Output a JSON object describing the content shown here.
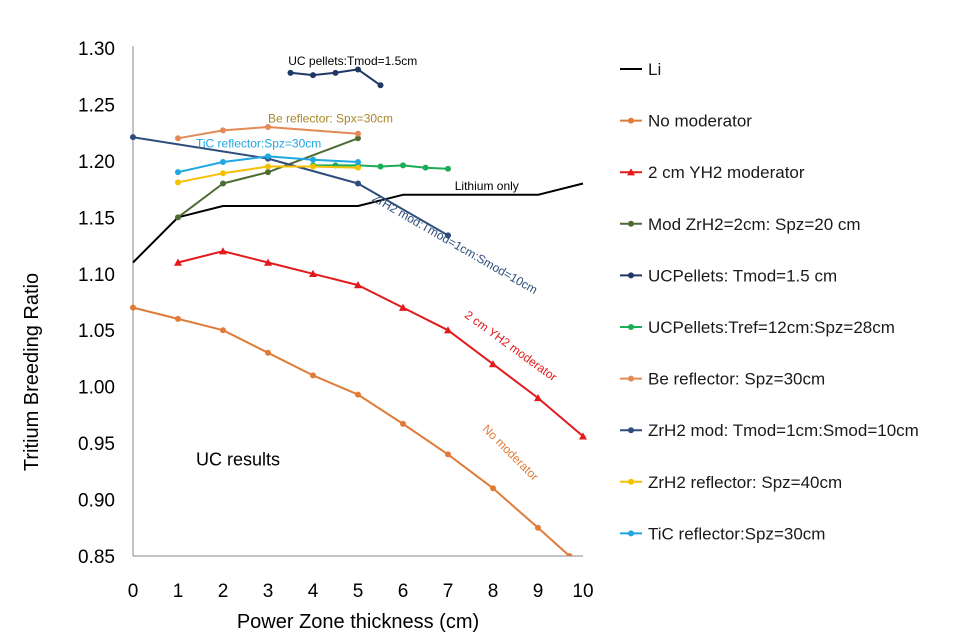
{
  "chart_data": {
    "type": "line",
    "xlabel": "Power Zone thickness (cm)",
    "ylabel": "Tritium Breeding Ratio",
    "xlim": [
      0,
      10
    ],
    "ylim": [
      0.85,
      1.3
    ],
    "x_ticks": [
      "0",
      "1",
      "2",
      "3",
      "4",
      "5",
      "6",
      "7",
      "8",
      "9",
      "10"
    ],
    "y_ticks": [
      "0.85",
      "0.90",
      "0.95",
      "1.00",
      "1.05",
      "1.10",
      "1.15",
      "1.20",
      "1.25",
      "1.30"
    ],
    "grid": false,
    "legend_position": "right",
    "series": [
      {
        "name": "Li",
        "color": "#000000",
        "marker": "none",
        "x": [
          0,
          1,
          2,
          3,
          4,
          5,
          6,
          7,
          8,
          9,
          10
        ],
        "y": [
          1.11,
          1.15,
          1.16,
          1.16,
          1.16,
          1.16,
          1.17,
          1.17,
          1.17,
          1.17,
          1.18
        ]
      },
      {
        "name": "No moderator",
        "color": "#e07b39",
        "marker": "circle",
        "x": [
          0,
          1,
          2,
          3,
          4,
          5,
          6,
          7,
          8,
          9,
          9.7
        ],
        "y": [
          1.07,
          1.06,
          1.05,
          1.03,
          1.01,
          0.993,
          0.967,
          0.94,
          0.91,
          0.875,
          0.85
        ]
      },
      {
        "name": "2 cm YH2 moderator",
        "color": "#e31a1c",
        "marker": "triangle",
        "x": [
          1,
          2,
          3,
          4,
          5,
          6,
          7,
          8,
          9,
          10
        ],
        "y": [
          1.11,
          1.12,
          1.11,
          1.1,
          1.09,
          1.07,
          1.05,
          1.02,
          0.99,
          0.956
        ]
      },
      {
        "name": "Mod ZrH2=2cm: Spz=20 cm",
        "color": "#4e6b34",
        "marker": "circle",
        "x": [
          1,
          2,
          3,
          5
        ],
        "y": [
          1.15,
          1.18,
          1.19,
          1.22
        ]
      },
      {
        "name": "UCPellets: Tmod=1.5 cm",
        "color": "#1f3864",
        "marker": "circle",
        "x": [
          3.5,
          4,
          4.5,
          5,
          5.5
        ],
        "y": [
          1.278,
          1.276,
          1.278,
          1.281,
          1.267
        ]
      },
      {
        "name": "UCPellets:Tref=12cm:Spz=28cm",
        "color": "#1aad56",
        "marker": "circle",
        "x": [
          4,
          4.5,
          5,
          5.5,
          6,
          6.5,
          7
        ],
        "y": [
          1.196,
          1.196,
          1.196,
          1.195,
          1.196,
          1.194,
          1.193
        ]
      },
      {
        "name": "Be reflector: Spz=30cm",
        "color": "#e38a56",
        "marker": "circle",
        "x": [
          1,
          2,
          3,
          5
        ],
        "y": [
          1.22,
          1.227,
          1.23,
          1.224
        ]
      },
      {
        "name": "ZrH2 mod: Tmod=1cm:Smod=10cm",
        "color": "#2e4d7b",
        "marker": "circle",
        "x": [
          0,
          3,
          5,
          7
        ],
        "y": [
          1.221,
          1.202,
          1.18,
          1.134
        ]
      },
      {
        "name": "ZrH2 reflector: Spz=40cm",
        "color": "#f5c000",
        "marker": "circle",
        "x": [
          1,
          2,
          3,
          4,
          5
        ],
        "y": [
          1.181,
          1.189,
          1.195,
          1.195,
          1.194
        ]
      },
      {
        "name": "TiC reflector:Spz=30cm",
        "color": "#1fa7e1",
        "marker": "circle",
        "x": [
          1,
          2,
          3,
          4,
          5
        ],
        "y": [
          1.19,
          1.199,
          1.204,
          1.201,
          1.199
        ]
      }
    ],
    "annotations": [
      {
        "text": "UC pellets:Tmod=1.5cm",
        "color": "#000000",
        "x": 3.45,
        "y": 1.285,
        "angle": 0
      },
      {
        "text": "Be reflector: Spx=30cm",
        "color": "#a8862a",
        "x": 3.0,
        "y": 1.234,
        "angle": 0
      },
      {
        "text": "TiC reflector:Spz=30cm",
        "color": "#1fa7e1",
        "x": 1.4,
        "y": 1.212,
        "angle": 0
      },
      {
        "text": "Lithium only",
        "color": "#000000",
        "x": 7.15,
        "y": 1.174,
        "angle": 0
      },
      {
        "text": "ZrH2 mod:Tmod=1cm:Smod=10cm",
        "color": "#2e4d7b",
        "x": 5.3,
        "y": 1.165,
        "angle": 30
      },
      {
        "text": "2 cm YH2 moderator",
        "color": "#e31a1c",
        "x": 7.35,
        "y": 1.062,
        "angle": 36
      },
      {
        "text": "No moderator",
        "color": "#e07b39",
        "x": 7.75,
        "y": 0.962,
        "angle": 45
      },
      {
        "text": "UC results",
        "color": "#000000",
        "x": 1.4,
        "y": 0.93,
        "angle": 0
      }
    ]
  }
}
